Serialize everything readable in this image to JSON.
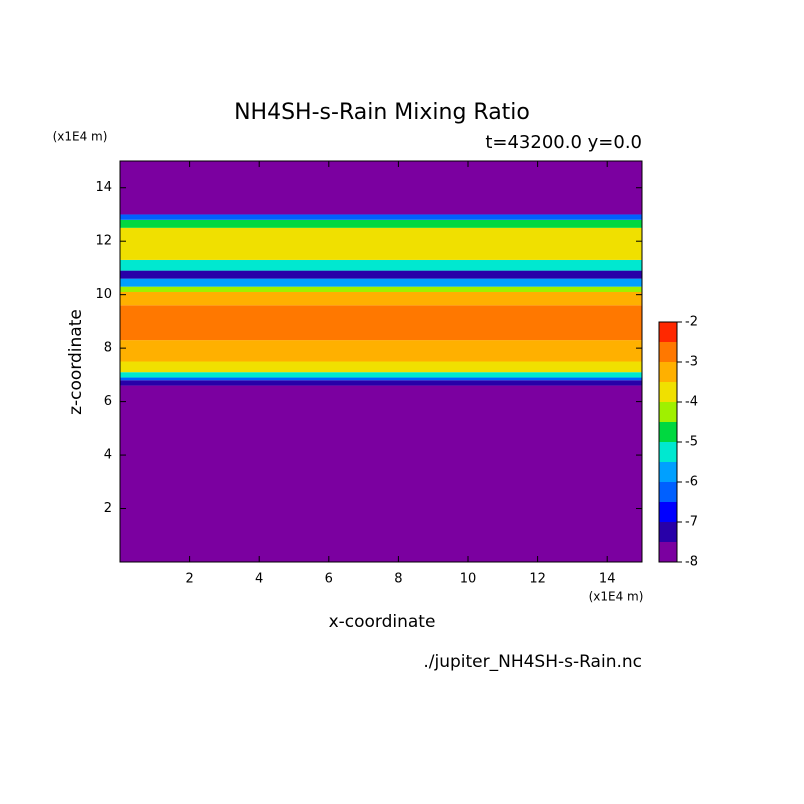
{
  "chart_data": {
    "type": "contour",
    "title": "NH4SH-s-Rain Mixing Ratio",
    "subtitle": "t=43200.0 y=0.0",
    "x_label": "x-coordinate",
    "y_label": "z-coordinate",
    "x_unit": "(x1E4 m)",
    "y_unit": "(x1E4 m)",
    "source": "./jupiter_NH4SH-s-Rain.nc",
    "xlim": [
      0,
      15
    ],
    "ylim": [
      0,
      15
    ],
    "xticks": [
      2,
      4,
      6,
      8,
      10,
      12,
      14
    ],
    "yticks": [
      2,
      4,
      6,
      8,
      10,
      12,
      14
    ],
    "z_edges": [
      0,
      6.6,
      6.8,
      6.9,
      7.1,
      7.5,
      8.3,
      9.6,
      10.1,
      10.3,
      10.6,
      10.9,
      11.3,
      12.5,
      12.8,
      13,
      15
    ],
    "values": [
      -7.8,
      -7.2,
      -6.2,
      -5.2,
      -3.7,
      -3.2,
      -2.8,
      -3.3,
      -4.2,
      -5.7,
      -7.3,
      -5.3,
      -3.7,
      -4.7,
      -6.2,
      -7.8
    ],
    "levels": [
      -8,
      -7.5,
      -7,
      -6.5,
      -6,
      -5.5,
      -5,
      -4.5,
      -4,
      -3.5,
      -3,
      -2.5,
      -2
    ],
    "colors": [
      "#7b00a0",
      "#2800a8",
      "#0000ff",
      "#0060ff",
      "#00a0ff",
      "#00e8d0",
      "#00d840",
      "#a0f000",
      "#f0e000",
      "#ffb000",
      "#ff7800",
      "#ff2800",
      "#ffb0b0"
    ],
    "colorbar_ticks": [
      -8,
      -7,
      -6,
      -5,
      -4,
      -3,
      -2
    ]
  }
}
